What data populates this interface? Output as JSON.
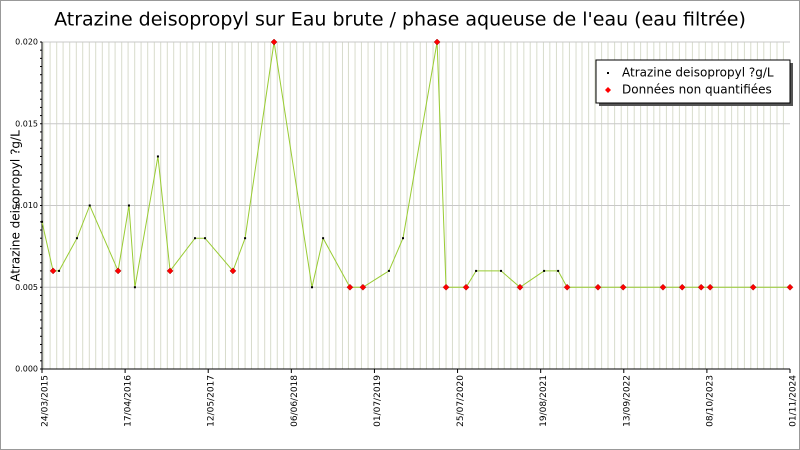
{
  "chart_data": {
    "type": "line",
    "title": "Atrazine deisopropyl sur Eau brute / phase aqueuse de l'eau (eau filtrée)",
    "y_label": "Atrazine deisopropyl ?g/L",
    "line_color": "#99cc33",
    "grid": true,
    "legend": "upper right",
    "x": [
      "2015-03-24",
      "2015-05-15",
      "2015-06-12",
      "2015-09-04",
      "2015-11-03",
      "2016-03-15",
      "2016-05-05",
      "2016-06-02",
      "2016-09-18",
      "2016-11-14",
      "2017-03-11",
      "2017-04-27",
      "2017-09-05",
      "2017-11-01",
      "2018-03-17",
      "2018-09-11",
      "2018-11-02",
      "2019-03-08",
      "2019-05-08",
      "2019-09-07",
      "2019-11-12",
      "2020-04-20",
      "2020-06-01",
      "2020-09-03",
      "2020-10-20",
      "2021-02-14",
      "2021-05-14",
      "2021-09-04",
      "2021-11-09",
      "2021-12-21",
      "2022-05-15",
      "2022-09-10",
      "2023-03-16",
      "2023-06-14",
      "2023-09-11",
      "2023-10-23",
      "2024-05-12",
      "2024-11-01"
    ],
    "series": [
      {
        "name": "Atrazine deisopropyl ?g/L",
        "color": "#000000",
        "values": [
          0.009,
          null,
          0.006,
          0.008,
          0.01,
          null,
          0.01,
          0.005,
          0.013,
          null,
          0.008,
          0.008,
          null,
          0.008,
          null,
          0.005,
          0.008,
          null,
          null,
          0.006,
          0.008,
          null,
          null,
          null,
          0.006,
          0.006,
          null,
          0.006,
          0.006,
          null,
          null,
          null,
          null,
          null,
          null,
          null,
          null,
          null
        ]
      },
      {
        "name": "Données non quantifiées",
        "color": "#ff0000",
        "values": [
          null,
          0.006,
          null,
          null,
          null,
          0.006,
          null,
          null,
          null,
          0.006,
          null,
          null,
          0.006,
          null,
          0.02,
          null,
          null,
          0.005,
          0.005,
          null,
          null,
          0.02,
          0.005,
          0.005,
          null,
          null,
          0.005,
          null,
          null,
          0.005,
          0.005,
          0.005,
          0.005,
          0.005,
          0.005,
          0.005,
          0.005,
          0.005
        ]
      }
    ],
    "xlim": [
      "2015-03-24",
      "2024-11-01"
    ],
    "xticks": [
      {
        "value": "2015-03-24",
        "label": "24/03/2015"
      },
      {
        "value": "2016-04-17",
        "label": "17/04/2016"
      },
      {
        "value": "2017-05-12",
        "label": "12/05/2017"
      },
      {
        "value": "2018-06-06",
        "label": "06/06/2018"
      },
      {
        "value": "2019-07-01",
        "label": "01/07/2019"
      },
      {
        "value": "2020-07-25",
        "label": "25/07/2020"
      },
      {
        "value": "2021-08-19",
        "label": "19/08/2021"
      },
      {
        "value": "2022-09-13",
        "label": "13/09/2022"
      },
      {
        "value": "2023-10-08",
        "label": "08/10/2023"
      },
      {
        "value": "2024-11-01",
        "label": "01/11/2024"
      }
    ],
    "ylim": [
      0,
      0.02
    ],
    "yticks": [
      {
        "value": 0,
        "label": "0.000"
      },
      0.005,
      {
        "value": 0.01,
        "label": "0.010"
      },
      0.015,
      {
        "value": 0.02,
        "label": "0.020"
      }
    ]
  }
}
